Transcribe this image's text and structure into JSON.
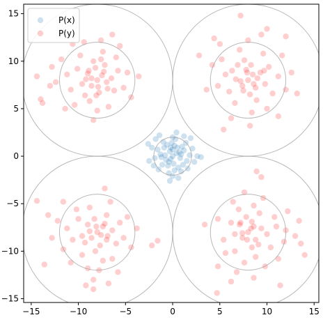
{
  "chart_data": {
    "type": "scatter",
    "title": "",
    "xlabel": "",
    "ylabel": "",
    "xlim": [
      -15.8,
      15.5
    ],
    "ylim": [
      -15.4,
      16.0
    ],
    "x_ticks": [
      -15,
      -10,
      -5,
      0,
      5,
      10,
      15
    ],
    "y_ticks": [
      -15,
      -10,
      -5,
      0,
      5,
      10,
      15
    ],
    "grid": false,
    "legend": {
      "placement": "top-left",
      "entries": [
        "P(x)",
        "P(y)"
      ]
    },
    "colors": {
      "px": "#1f77b4",
      "py": "#ff2020",
      "ring": "#a0a0a0"
    },
    "series": [
      {
        "name": "P(x)",
        "color": "#1f77b4",
        "points": [
          [
            0.0,
            0.0
          ],
          [
            0.4,
            0.3
          ],
          [
            -0.3,
            0.5
          ],
          [
            0.8,
            -0.2
          ],
          [
            -0.7,
            -0.4
          ],
          [
            0.2,
            1.1
          ],
          [
            -0.5,
            -1.0
          ],
          [
            1.2,
            0.6
          ],
          [
            -1.3,
            0.2
          ],
          [
            0.6,
            -1.2
          ],
          [
            -0.9,
            0.9
          ],
          [
            1.0,
            1.0
          ],
          [
            -0.2,
            -0.3
          ],
          [
            0.1,
            -0.8
          ],
          [
            -1.1,
            -0.9
          ],
          [
            1.5,
            -0.5
          ],
          [
            -1.6,
            0.7
          ],
          [
            0.3,
            1.8
          ],
          [
            -0.4,
            -1.8
          ],
          [
            1.8,
            0.1
          ],
          [
            -1.9,
            -0.2
          ],
          [
            0.9,
            -1.6
          ],
          [
            -1.0,
            1.5
          ],
          [
            1.4,
            1.4
          ],
          [
            -1.5,
            -1.4
          ],
          [
            0.0,
            2.0
          ],
          [
            0.0,
            -2.1
          ],
          [
            2.1,
            0.8
          ],
          [
            -2.2,
            0.9
          ],
          [
            0.5,
            0.9
          ],
          [
            -0.8,
            0.1
          ],
          [
            0.7,
            0.4
          ],
          [
            -0.1,
            1.4
          ],
          [
            0.2,
            -1.5
          ],
          [
            1.1,
            -0.9
          ],
          [
            -1.2,
            -0.1
          ],
          [
            -0.6,
            1.2
          ],
          [
            1.6,
            -1.3
          ],
          [
            -2.0,
            -1.0
          ],
          [
            2.3,
            -0.6
          ],
          [
            -2.5,
            -0.5
          ],
          [
            0.4,
            2.5
          ],
          [
            -0.3,
            -2.6
          ],
          [
            2.6,
            0.0
          ],
          [
            1.9,
            1.9
          ],
          [
            -1.8,
            1.8
          ],
          [
            0.0,
            0.7
          ],
          [
            -0.4,
            -0.6
          ],
          [
            0.9,
            0.2
          ],
          [
            -0.2,
            0.9
          ],
          [
            3.0,
            -0.1
          ],
          [
            -2.6,
            1.3
          ],
          [
            0.6,
            -2.3
          ],
          [
            -1.4,
            2.2
          ],
          [
            1.2,
            2.1
          ]
        ]
      },
      {
        "name": "P(y)",
        "color": "#ff2020",
        "points": [
          [
            -8.0,
            8.0
          ],
          [
            -7.5,
            8.5
          ],
          [
            -8.6,
            7.4
          ],
          [
            -7.0,
            7.8
          ],
          [
            -9.0,
            8.7
          ],
          [
            -8.2,
            9.3
          ],
          [
            -7.8,
            6.7
          ],
          [
            -6.5,
            8.2
          ],
          [
            -9.6,
            7.6
          ],
          [
            -8.4,
            10.0
          ],
          [
            -7.2,
            9.6
          ],
          [
            -9.3,
            6.4
          ],
          [
            -6.2,
            6.9
          ],
          [
            -10.1,
            9.2
          ],
          [
            -8.8,
            5.8
          ],
          [
            -5.8,
            9.0
          ],
          [
            -10.8,
            7.0
          ],
          [
            -7.4,
            11.0
          ],
          [
            -9.8,
            10.6
          ],
          [
            -6.0,
            10.4
          ],
          [
            -11.2,
            8.6
          ],
          [
            -8.0,
            4.8
          ],
          [
            -5.2,
            7.2
          ],
          [
            -10.4,
            5.4
          ],
          [
            -6.8,
            5.2
          ],
          [
            -11.8,
            10.2
          ],
          [
            -7.6,
            12.2
          ],
          [
            -9.4,
            12.0
          ],
          [
            -4.8,
            8.8
          ],
          [
            -12.4,
            7.8
          ],
          [
            -5.6,
            11.6
          ],
          [
            -10.6,
            11.8
          ],
          [
            -8.4,
            3.8
          ],
          [
            -4.4,
            6.2
          ],
          [
            -12.8,
            9.4
          ],
          [
            -6.4,
            12.8
          ],
          [
            -11.4,
            5.0
          ],
          [
            -3.6,
            8.4
          ],
          [
            -14.0,
            6.0
          ],
          [
            -13.8,
            5.6
          ],
          [
            -14.4,
            8.4
          ],
          [
            -13.0,
            7.4
          ],
          [
            -8.6,
            8.2
          ],
          [
            -7.9,
            7.3
          ],
          [
            -7.3,
            8.9
          ],
          [
            -8.9,
            9.0
          ],
          [
            -6.9,
            7.1
          ],
          [
            -9.2,
            8.1
          ],
          [
            -8.1,
            6.4
          ],
          [
            -7.6,
            10.2
          ],
          [
            8.0,
            8.0
          ],
          [
            8.5,
            8.6
          ],
          [
            7.4,
            7.4
          ],
          [
            7.8,
            9.1
          ],
          [
            8.8,
            7.2
          ],
          [
            9.3,
            8.8
          ],
          [
            6.7,
            8.1
          ],
          [
            8.2,
            6.5
          ],
          [
            9.8,
            7.6
          ],
          [
            6.3,
            9.0
          ],
          [
            7.6,
            10.1
          ],
          [
            10.2,
            9.4
          ],
          [
            6.0,
            6.8
          ],
          [
            8.9,
            5.9
          ],
          [
            5.6,
            8.6
          ],
          [
            10.6,
            6.6
          ],
          [
            7.1,
            11.2
          ],
          [
            9.6,
            10.8
          ],
          [
            5.2,
            10.2
          ],
          [
            11.2,
            8.4
          ],
          [
            6.6,
            5.6
          ],
          [
            4.8,
            7.4
          ],
          [
            10.0,
            5.0
          ],
          [
            8.4,
            4.6
          ],
          [
            11.6,
            10.6
          ],
          [
            5.0,
            11.8
          ],
          [
            8.0,
            12.2
          ],
          [
            12.0,
            7.0
          ],
          [
            4.2,
            9.6
          ],
          [
            9.4,
            12.8
          ],
          [
            12.6,
            8.8
          ],
          [
            3.6,
            7.0
          ],
          [
            11.2,
            4.2
          ],
          [
            6.2,
            4.0
          ],
          [
            13.2,
            6.6
          ],
          [
            4.4,
            12.4
          ],
          [
            12.0,
            12.6
          ],
          [
            10.0,
            13.4
          ],
          [
            7.2,
            14.8
          ],
          [
            2.8,
            10.6
          ],
          [
            8.2,
            3.2
          ],
          [
            5.4,
            2.8
          ],
          [
            7.9,
            8.8
          ],
          [
            8.6,
            7.6
          ],
          [
            7.2,
            7.9
          ],
          [
            8.3,
            9.6
          ],
          [
            9.0,
            8.2
          ],
          [
            7.5,
            6.9
          ],
          [
            6.9,
            9.6
          ],
          [
            9.7,
            9.0
          ],
          [
            -8.0,
            -8.0
          ],
          [
            -7.4,
            -7.4
          ],
          [
            -8.6,
            -8.6
          ],
          [
            -7.0,
            -8.8
          ],
          [
            -9.0,
            -7.2
          ],
          [
            -8.3,
            -6.6
          ],
          [
            -7.7,
            -9.4
          ],
          [
            -6.4,
            -7.8
          ],
          [
            -9.6,
            -8.4
          ],
          [
            -8.2,
            -10.0
          ],
          [
            -7.0,
            -6.2
          ],
          [
            -10.0,
            -6.6
          ],
          [
            -6.0,
            -9.2
          ],
          [
            -9.6,
            -10.4
          ],
          [
            -5.6,
            -7.0
          ],
          [
            -10.6,
            -8.8
          ],
          [
            -7.4,
            -11.0
          ],
          [
            -8.8,
            -5.4
          ],
          [
            -5.2,
            -8.6
          ],
          [
            -11.2,
            -7.6
          ],
          [
            -6.4,
            -10.8
          ],
          [
            -10.2,
            -5.6
          ],
          [
            -4.8,
            -6.4
          ],
          [
            -11.6,
            -9.8
          ],
          [
            -7.8,
            -12.0
          ],
          [
            -9.0,
            -11.8
          ],
          [
            -4.4,
            -9.6
          ],
          [
            -12.2,
            -6.8
          ],
          [
            -6.6,
            -4.8
          ],
          [
            -10.8,
            -11.2
          ],
          [
            -3.8,
            -7.6
          ],
          [
            -12.8,
            -8.6
          ],
          [
            -8.4,
            -13.0
          ],
          [
            -5.8,
            -12.2
          ],
          [
            -13.2,
            -6.2
          ],
          [
            -11.6,
            -4.8
          ],
          [
            -7.2,
            -3.4
          ],
          [
            -2.2,
            -9.4
          ],
          [
            -1.6,
            -8.9
          ],
          [
            -14.4,
            -4.7
          ],
          [
            -13.6,
            -11.4
          ],
          [
            -8.4,
            -14.0
          ],
          [
            -6.8,
            -13.4
          ],
          [
            -9.2,
            -13.6
          ],
          [
            -8.1,
            -7.4
          ],
          [
            -7.6,
            -8.3
          ],
          [
            -8.8,
            -7.9
          ],
          [
            -7.2,
            -7.1
          ],
          [
            -9.3,
            -9.1
          ],
          [
            -6.9,
            -8.4
          ],
          [
            8.0,
            -8.0
          ],
          [
            8.6,
            -7.4
          ],
          [
            7.4,
            -8.6
          ],
          [
            8.8,
            -8.8
          ],
          [
            7.2,
            -7.0
          ],
          [
            6.6,
            -8.2
          ],
          [
            9.4,
            -7.6
          ],
          [
            7.8,
            -6.4
          ],
          [
            8.4,
            -9.6
          ],
          [
            10.0,
            -8.2
          ],
          [
            6.2,
            -7.0
          ],
          [
            6.6,
            -10.0
          ],
          [
            9.2,
            -6.0
          ],
          [
            10.4,
            -9.6
          ],
          [
            7.0,
            -5.6
          ],
          [
            8.8,
            -10.6
          ],
          [
            11.0,
            -7.4
          ],
          [
            5.4,
            -8.8
          ],
          [
            8.6,
            -5.2
          ],
          [
            7.6,
            -11.2
          ],
          [
            10.8,
            -6.4
          ],
          [
            5.6,
            -10.2
          ],
          [
            6.4,
            -4.8
          ],
          [
            9.8,
            -11.6
          ],
          [
            12.0,
            -7.8
          ],
          [
            11.8,
            -9.0
          ],
          [
            9.6,
            -4.4
          ],
          [
            6.8,
            -12.2
          ],
          [
            4.8,
            -6.6
          ],
          [
            11.2,
            -10.8
          ],
          [
            7.6,
            -3.8
          ],
          [
            8.6,
            -12.8
          ],
          [
            13.0,
            -8.4
          ],
          [
            12.2,
            -5.8
          ],
          [
            6.2,
            -13.2
          ],
          [
            4.8,
            -11.6
          ],
          [
            3.4,
            -7.2
          ],
          [
            9.4,
            -2.2
          ],
          [
            8.9,
            -1.6
          ],
          [
            4.7,
            -14.4
          ],
          [
            11.4,
            -13.6
          ],
          [
            14.0,
            -10.4
          ],
          [
            13.4,
            -6.8
          ],
          [
            13.6,
            -9.2
          ],
          [
            7.4,
            -8.1
          ],
          [
            8.3,
            -7.6
          ],
          [
            7.9,
            -8.8
          ],
          [
            7.1,
            -7.2
          ],
          [
            9.1,
            -9.3
          ],
          [
            8.4,
            -6.9
          ]
        ]
      }
    ],
    "circles": [
      {
        "cx": -8,
        "cy": 8,
        "r": [
          4,
          8
        ]
      },
      {
        "cx": 8,
        "cy": 8,
        "r": [
          4,
          8
        ]
      },
      {
        "cx": -8,
        "cy": -8,
        "r": [
          4,
          8
        ]
      },
      {
        "cx": 8,
        "cy": -8,
        "r": [
          4,
          8
        ]
      },
      {
        "cx": 0,
        "cy": 0,
        "r": [
          2
        ]
      }
    ]
  }
}
